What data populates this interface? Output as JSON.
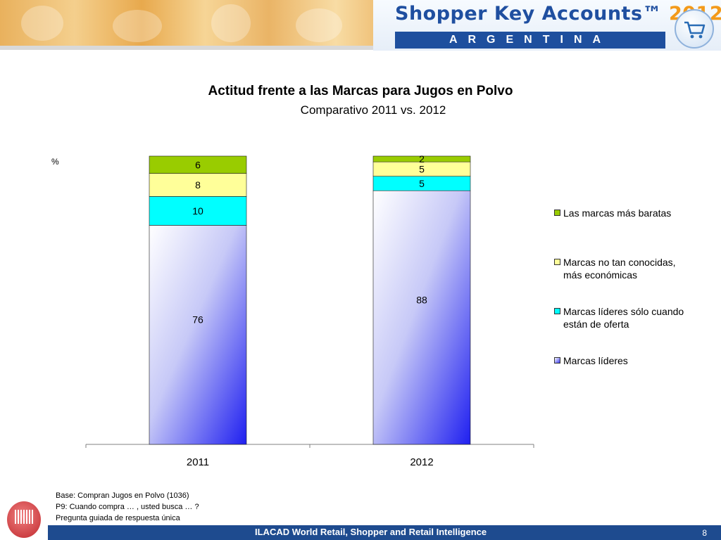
{
  "header": {
    "brand_title": "Shopper Key Accounts™",
    "brand_year": "2012",
    "country": "ARGENTINA"
  },
  "chart_data": {
    "type": "bar",
    "stacked": true,
    "title": "Actitud frente a las Marcas para Jugos en Polvo",
    "subtitle": "Comparativo 2011 vs. 2012",
    "ylabel": "%",
    "categories": [
      "2011",
      "2012"
    ],
    "series": [
      {
        "name": "Marcas líderes",
        "values": [
          76,
          88
        ],
        "color": "#3c3cf0"
      },
      {
        "name": "Marcas líderes sólo cuando están de oferta",
        "values": [
          10,
          5
        ],
        "color": "#00ffff"
      },
      {
        "name": "Marcas no tan conocidas,  más económicas",
        "values": [
          8,
          5
        ],
        "color": "#ffff99"
      },
      {
        "name": "Las marcas más baratas",
        "values": [
          6,
          2
        ],
        "color": "#99cc00"
      }
    ],
    "ylim": [
      0,
      100
    ],
    "legend_position": "right",
    "grid": false
  },
  "footnotes": [
    "Base: Compran Jugos en Polvo (1036)",
    "P9: Cuando compra … , usted busca … ?",
    "Pregunta guiada de respuesta única"
  ],
  "footer": {
    "text": "ILACAD World Retail, Shopper and Retail Intelligence",
    "page_number": "8"
  },
  "icons": [
    "shopping-cart-icon",
    "barcode-logo-icon"
  ]
}
